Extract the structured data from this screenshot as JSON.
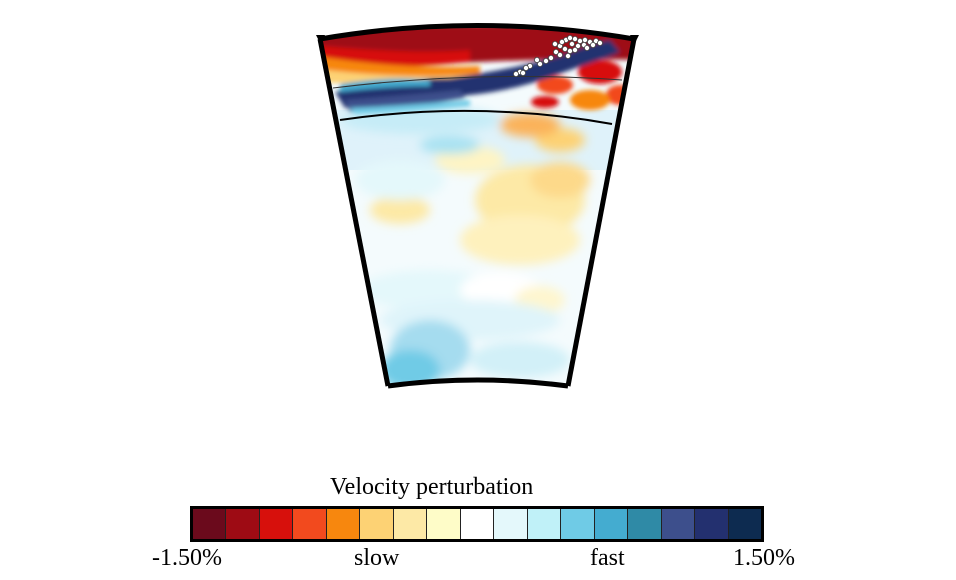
{
  "figure": {
    "colorbar": {
      "title": "Velocity perturbation",
      "min_label": "-1.50%",
      "max_label": "1.50%",
      "slow_label": "slow",
      "fast_label": "fast",
      "colors": [
        "#6b0a1c",
        "#9e0b14",
        "#d7100c",
        "#f24a1e",
        "#f7870e",
        "#fdd274",
        "#fde9a6",
        "#fefcc8",
        "#ffffff",
        "#e4f8fb",
        "#c0f1f8",
        "#6fcbe6",
        "#44acd0",
        "#2f8aa6",
        "#3d4f8c",
        "#23306f",
        "#0d2b50"
      ]
    },
    "markers": {
      "station_symbol": "inverted-triangle",
      "event_symbol": "white-circle"
    }
  }
}
